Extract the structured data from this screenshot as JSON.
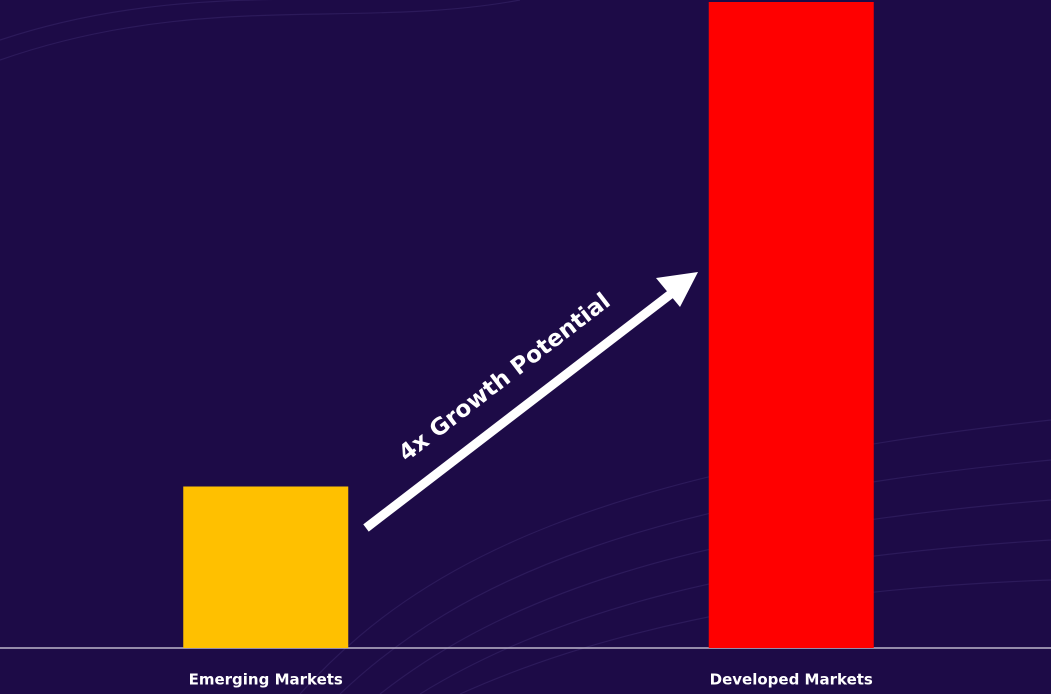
{
  "chart_data": {
    "type": "bar",
    "categories": [
      "Emerging Markets",
      "Developed Markets"
    ],
    "values": [
      1,
      4
    ],
    "colors": [
      "#ffc000",
      "#ff0000"
    ],
    "ylim": [
      0,
      4
    ],
    "annotation": "4x Growth Potential"
  }
}
